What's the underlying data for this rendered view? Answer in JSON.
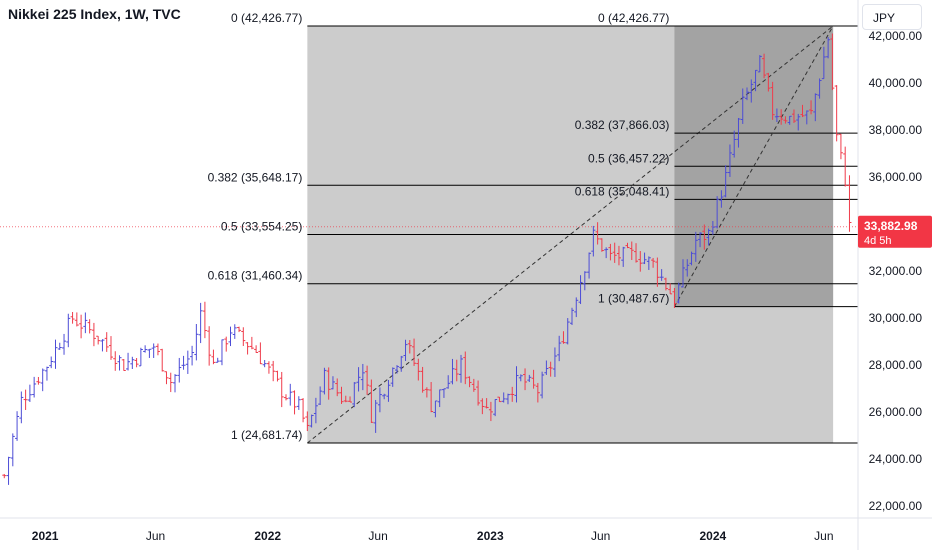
{
  "header": {
    "title": "Nikkei 225 Index, 1W, TVC",
    "currency": "JPY"
  },
  "price_badge": {
    "price": "33,882.98",
    "countdown": "4d 5h",
    "color": "#f23645"
  },
  "colors": {
    "up": "#4c4cd6",
    "down": "#ef3b4a",
    "fib_light": "#cccccc",
    "fib_dark": "#a3a3a3",
    "level_line": "#000000",
    "axis_text": "#131722"
  },
  "chart_data": {
    "type": "ohlc-bar",
    "symbol": "Nikkei 225 Index",
    "interval": "1W",
    "source": "TVC",
    "y_axis": {
      "range": [
        21500,
        42600
      ],
      "ticks": [
        22000,
        24000,
        26000,
        28000,
        30000,
        32000,
        34000,
        36000,
        38000,
        40000,
        42000
      ],
      "tick_labels": [
        "22,000.00",
        "24,000.00",
        "26,000.00",
        "28,000.00",
        "30,000.00",
        "32,000.00",
        "34,000.00",
        "36,000.00",
        "38,000.00",
        "40,000.00",
        "42,000.00"
      ]
    },
    "x_axis": {
      "range": [
        "2020-10-19",
        "2024-08-26"
      ],
      "ticks": [
        {
          "date": "2021-01-01",
          "label": "2021"
        },
        {
          "date": "2021-07-01",
          "label": "Jun"
        },
        {
          "date": "2022-01-01",
          "label": "2022"
        },
        {
          "date": "2022-07-01",
          "label": "Jun"
        },
        {
          "date": "2023-01-01",
          "label": "2023"
        },
        {
          "date": "2023-07-01",
          "label": "Jun"
        },
        {
          "date": "2024-01-01",
          "label": "2024"
        },
        {
          "date": "2024-07-01",
          "label": "Jun"
        }
      ]
    },
    "last_price": 33882.98,
    "fib_retracements": [
      {
        "name": "outer",
        "start_date": "2022-03-07",
        "end_date": "2024-07-08",
        "low": 24681.74,
        "high": 42426.77,
        "levels": [
          {
            "label": "0 (42,426.77)",
            "value": 42426.77
          },
          {
            "label": "0.382 (35,648.17)",
            "value": 35648.17
          },
          {
            "label": "0.5 (33,554.25)",
            "value": 33554.25
          },
          {
            "label": "0.618 (31,460.34)",
            "value": 31460.34
          },
          {
            "label": "1 (24,681.74)",
            "value": 24681.74
          }
        ]
      },
      {
        "name": "inner",
        "start_date": "2023-10-30",
        "end_date": "2024-07-08",
        "low": 30487.67,
        "high": 42426.77,
        "levels": [
          {
            "label": "0 (42,426.77)",
            "value": 42426.77
          },
          {
            "label": "0.382 (37,866.03)",
            "value": 37866.03
          },
          {
            "label": "0.5 (36,457.22)",
            "value": 36457.22
          },
          {
            "label": "0.618 (35,048.41)",
            "value": 35048.41
          },
          {
            "label": "1 (30,487.67)",
            "value": 30487.67
          }
        ]
      }
    ],
    "close_path": [
      [
        "2020-10-26",
        23300
      ],
      [
        "2020-11-23",
        26500
      ],
      [
        "2021-01-04",
        28000
      ],
      [
        "2021-02-15",
        30000
      ],
      [
        "2021-03-29",
        29200
      ],
      [
        "2021-05-10",
        28000
      ],
      [
        "2021-06-28",
        28800
      ],
      [
        "2021-07-26",
        27300
      ],
      [
        "2021-08-30",
        28500
      ],
      [
        "2021-09-13",
        30200
      ],
      [
        "2021-10-04",
        28000
      ],
      [
        "2021-11-01",
        29500
      ],
      [
        "2021-12-13",
        28600
      ],
      [
        "2022-01-24",
        26900
      ],
      [
        "2022-02-21",
        26200
      ],
      [
        "2022-03-07",
        25200
      ],
      [
        "2022-04-04",
        27500
      ],
      [
        "2022-05-09",
        26400
      ],
      [
        "2022-06-06",
        27900
      ],
      [
        "2022-06-20",
        25900
      ],
      [
        "2022-08-15",
        29000
      ],
      [
        "2022-09-26",
        26300
      ],
      [
        "2022-11-14",
        28000
      ],
      [
        "2022-12-26",
        26100
      ],
      [
        "2023-02-20",
        27400
      ],
      [
        "2023-03-20",
        26900
      ],
      [
        "2023-04-24",
        28700
      ],
      [
        "2023-05-22",
        31000
      ],
      [
        "2023-06-19",
        33500
      ],
      [
        "2023-07-17",
        32600
      ],
      [
        "2023-08-28",
        32700
      ],
      [
        "2023-09-25",
        32300
      ],
      [
        "2023-10-30",
        30800
      ],
      [
        "2023-12-04",
        33300
      ],
      [
        "2023-12-25",
        33600
      ],
      [
        "2024-01-22",
        36000
      ],
      [
        "2024-02-19",
        39100
      ],
      [
        "2024-03-18",
        40800
      ],
      [
        "2024-04-08",
        38800
      ],
      [
        "2024-05-06",
        38500
      ],
      [
        "2024-06-10",
        38700
      ],
      [
        "2024-07-08",
        41900
      ],
      [
        "2024-07-22",
        37700
      ],
      [
        "2024-08-05",
        35900
      ],
      [
        "2024-08-12",
        33900
      ]
    ]
  }
}
